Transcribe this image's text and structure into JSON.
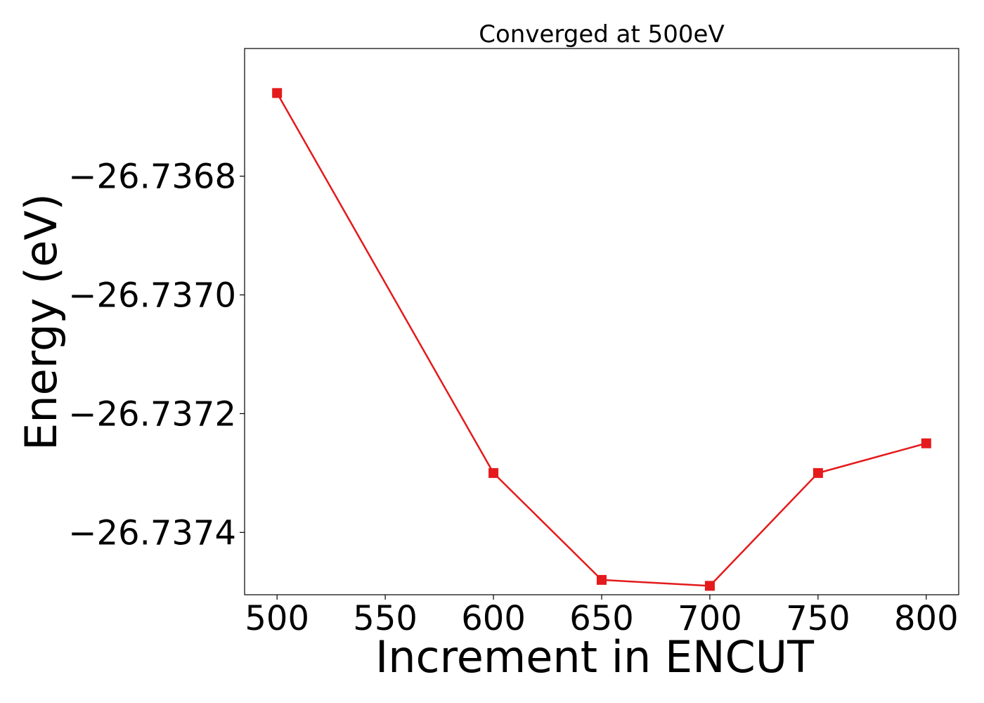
{
  "chart_data": {
    "type": "line",
    "title": "Converged at 500eV",
    "xlabel": "Increment in ENCUT",
    "ylabel": "Energy (eV)",
    "x": [
      500,
      600,
      650,
      700,
      750,
      800
    ],
    "series": [
      {
        "values": [
          -26.73666,
          -26.7373,
          -26.73748,
          -26.73749,
          -26.7373,
          -26.73725
        ],
        "color": "#e41a1c",
        "marker": "square"
      }
    ],
    "xlim": [
      485,
      815
    ],
    "ylim": [
      -26.737505,
      -26.736585
    ],
    "xticks": [
      500,
      550,
      600,
      650,
      700,
      750,
      800
    ],
    "yticks": [
      -26.7368,
      -26.737,
      -26.7372,
      -26.7374
    ],
    "xtick_labels": [
      "500",
      "550",
      "600",
      "650",
      "700",
      "750",
      "800"
    ],
    "ytick_labels": [
      "−26.7368",
      "−26.7370",
      "−26.7372",
      "−26.7374"
    ],
    "grid": false,
    "legend": "none"
  }
}
